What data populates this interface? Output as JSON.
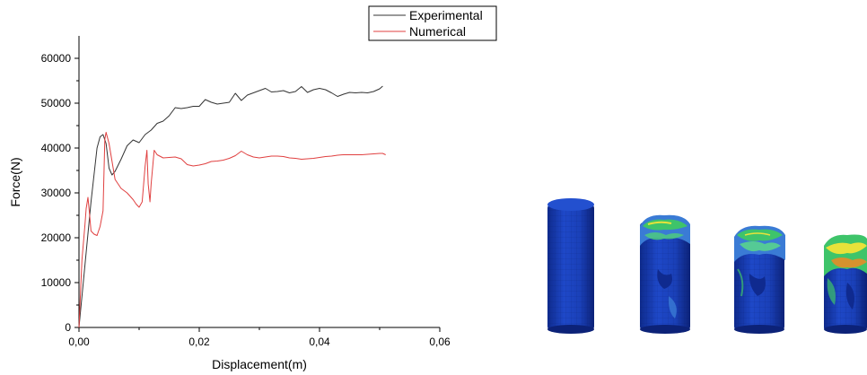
{
  "chart_data": {
    "type": "line",
    "xlabel": "Displacement(m)",
    "ylabel": "Force(N)",
    "xlim": [
      0,
      0.06
    ],
    "ylim": [
      0,
      65000
    ],
    "x_ticks": [
      "0,00",
      "0,02",
      "0,04",
      "0,06"
    ],
    "y_ticks": [
      "0",
      "10000",
      "20000",
      "30000",
      "40000",
      "50000",
      "60000"
    ],
    "legend_position": "top-center",
    "grid": false,
    "series": [
      {
        "name": "Experimental",
        "color": "#333333",
        "points": [
          [
            0.0,
            0
          ],
          [
            0.001,
            14000
          ],
          [
            0.002,
            28000
          ],
          [
            0.003,
            40000
          ],
          [
            0.0035,
            42500
          ],
          [
            0.004,
            43000
          ],
          [
            0.0045,
            41000
          ],
          [
            0.005,
            35500
          ],
          [
            0.0055,
            34000
          ],
          [
            0.006,
            34800
          ],
          [
            0.007,
            37500
          ],
          [
            0.008,
            40500
          ],
          [
            0.009,
            41800
          ],
          [
            0.01,
            41200
          ],
          [
            0.011,
            43000
          ],
          [
            0.012,
            44000
          ],
          [
            0.013,
            45500
          ],
          [
            0.014,
            46000
          ],
          [
            0.015,
            47200
          ],
          [
            0.016,
            49000
          ],
          [
            0.017,
            48800
          ],
          [
            0.018,
            49000
          ],
          [
            0.019,
            49300
          ],
          [
            0.02,
            49300
          ],
          [
            0.021,
            50800
          ],
          [
            0.022,
            50200
          ],
          [
            0.023,
            49800
          ],
          [
            0.024,
            50000
          ],
          [
            0.025,
            50200
          ],
          [
            0.026,
            52200
          ],
          [
            0.027,
            50600
          ],
          [
            0.028,
            51800
          ],
          [
            0.029,
            52300
          ],
          [
            0.03,
            52800
          ],
          [
            0.031,
            53300
          ],
          [
            0.032,
            52500
          ],
          [
            0.033,
            52600
          ],
          [
            0.034,
            52800
          ],
          [
            0.035,
            52300
          ],
          [
            0.036,
            52600
          ],
          [
            0.037,
            53700
          ],
          [
            0.038,
            52400
          ],
          [
            0.039,
            53000
          ],
          [
            0.04,
            53300
          ],
          [
            0.041,
            53000
          ],
          [
            0.042,
            52300
          ],
          [
            0.043,
            51500
          ],
          [
            0.044,
            52000
          ],
          [
            0.045,
            52400
          ],
          [
            0.046,
            52300
          ],
          [
            0.047,
            52400
          ],
          [
            0.048,
            52300
          ],
          [
            0.049,
            52600
          ],
          [
            0.05,
            53200
          ],
          [
            0.0505,
            53800
          ]
        ]
      },
      {
        "name": "Numerical",
        "color": "#e04040",
        "points": [
          [
            0.0,
            0
          ],
          [
            0.0005,
            15000
          ],
          [
            0.001,
            23000
          ],
          [
            0.0012,
            26500
          ],
          [
            0.0015,
            29000
          ],
          [
            0.0018,
            24500
          ],
          [
            0.002,
            21500
          ],
          [
            0.0025,
            20800
          ],
          [
            0.003,
            20500
          ],
          [
            0.0035,
            22500
          ],
          [
            0.004,
            26000
          ],
          [
            0.0043,
            42000
          ],
          [
            0.0045,
            43500
          ],
          [
            0.005,
            41000
          ],
          [
            0.006,
            33000
          ],
          [
            0.007,
            31000
          ],
          [
            0.008,
            30000
          ],
          [
            0.009,
            28500
          ],
          [
            0.0095,
            27500
          ],
          [
            0.01,
            26800
          ],
          [
            0.0105,
            28000
          ],
          [
            0.011,
            36000
          ],
          [
            0.0113,
            39500
          ],
          [
            0.0115,
            32000
          ],
          [
            0.0118,
            28000
          ],
          [
            0.012,
            32000
          ],
          [
            0.0125,
            39500
          ],
          [
            0.013,
            38500
          ],
          [
            0.014,
            37800
          ],
          [
            0.015,
            37900
          ],
          [
            0.016,
            38000
          ],
          [
            0.017,
            37600
          ],
          [
            0.018,
            36300
          ],
          [
            0.019,
            36000
          ],
          [
            0.02,
            36200
          ],
          [
            0.021,
            36500
          ],
          [
            0.022,
            37000
          ],
          [
            0.023,
            37100
          ],
          [
            0.024,
            37300
          ],
          [
            0.025,
            37700
          ],
          [
            0.026,
            38300
          ],
          [
            0.027,
            39300
          ],
          [
            0.028,
            38500
          ],
          [
            0.029,
            38000
          ],
          [
            0.03,
            37800
          ],
          [
            0.031,
            38000
          ],
          [
            0.032,
            38200
          ],
          [
            0.033,
            38200
          ],
          [
            0.034,
            38100
          ],
          [
            0.035,
            37800
          ],
          [
            0.036,
            37700
          ],
          [
            0.037,
            37500
          ],
          [
            0.038,
            37600
          ],
          [
            0.039,
            37700
          ],
          [
            0.04,
            37900
          ],
          [
            0.041,
            38100
          ],
          [
            0.042,
            38200
          ],
          [
            0.043,
            38400
          ],
          [
            0.044,
            38500
          ],
          [
            0.045,
            38500
          ],
          [
            0.046,
            38500
          ],
          [
            0.047,
            38500
          ],
          [
            0.048,
            38600
          ],
          [
            0.049,
            38700
          ],
          [
            0.05,
            38800
          ],
          [
            0.0505,
            38800
          ],
          [
            0.051,
            38500
          ]
        ]
      }
    ]
  },
  "specimens": {
    "description_icon": "crushed-cylinder-fea-icon",
    "count": 4,
    "colors": {
      "base": "#1b3fb8",
      "dark": "#0f2a8f",
      "mid": "#3a7bd5",
      "green": "#3ec46a",
      "yellow": "#e8e23a",
      "orange": "#f08a24"
    }
  }
}
